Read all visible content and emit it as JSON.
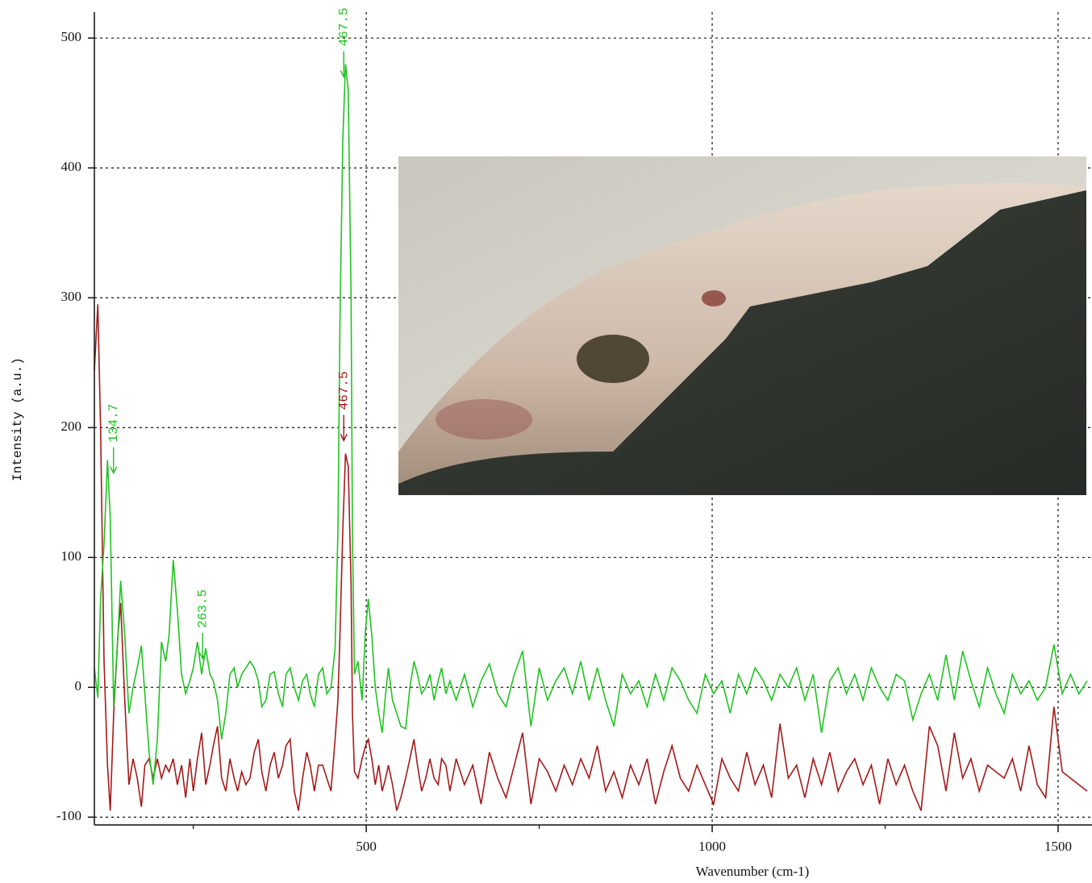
{
  "chart_data": {
    "type": "line",
    "xlabel": "Wavenumber (cm-1)",
    "ylabel": "Intensity (a.u.)",
    "x": [
      107,
      112,
      116,
      121,
      126,
      130,
      135,
      141,
      145,
      151,
      157,
      163,
      169,
      175,
      180,
      186,
      192,
      198,
      204,
      210,
      215,
      221,
      227,
      233,
      239,
      245,
      250,
      256,
      262,
      268,
      274,
      279,
      285,
      291,
      297,
      303,
      309,
      314,
      320,
      326,
      332,
      338,
      344,
      349,
      355,
      361,
      367,
      373,
      379,
      384,
      390,
      396,
      402,
      408,
      414,
      419,
      425,
      431,
      437,
      443,
      449,
      455,
      459,
      462,
      466,
      470,
      474,
      478,
      480,
      483,
      488,
      494,
      499,
      503,
      508,
      513,
      518,
      523,
      528,
      532,
      538,
      544,
      550,
      557,
      563,
      569,
      574,
      580,
      586,
      592,
      598,
      604,
      609,
      615,
      621,
      630,
      642,
      654,
      666,
      678,
      690,
      702,
      714,
      726,
      738,
      750,
      762,
      774,
      786,
      798,
      810,
      822,
      834,
      846,
      858,
      870,
      882,
      894,
      906,
      918,
      930,
      942,
      954,
      966,
      978,
      990,
      1002,
      1014,
      1026,
      1038,
      1050,
      1062,
      1074,
      1086,
      1098,
      1110,
      1122,
      1134,
      1146,
      1158,
      1170,
      1182,
      1194,
      1206,
      1218,
      1230,
      1242,
      1254,
      1266,
      1278,
      1290,
      1302,
      1314,
      1326,
      1338,
      1350,
      1362,
      1374,
      1386,
      1398,
      1410,
      1422,
      1434,
      1446,
      1458,
      1470,
      1482,
      1494,
      1506,
      1518,
      1530,
      1542
    ],
    "series": [
      {
        "color": "#22c322",
        "values": [
          15,
          -8,
          68,
          110,
          175,
          130,
          -15,
          40,
          82,
          40,
          -20,
          0,
          15,
          32,
          -5,
          -50,
          -75,
          -40,
          35,
          20,
          40,
          98,
          60,
          10,
          -5,
          5,
          15,
          35,
          10,
          30,
          10,
          5,
          -10,
          -40,
          -20,
          10,
          15,
          0,
          10,
          15,
          20,
          15,
          5,
          -15,
          -10,
          10,
          12,
          -5,
          -15,
          10,
          15,
          0,
          -10,
          5,
          10,
          -5,
          -15,
          10,
          15,
          -5,
          0,
          30,
          120,
          280,
          420,
          480,
          460,
          300,
          120,
          10,
          20,
          -10,
          45,
          68,
          40,
          0,
          -20,
          -35,
          -5,
          15,
          -10,
          -20,
          -30,
          -32,
          0,
          20,
          10,
          -5,
          0,
          10,
          -10,
          5,
          15,
          -5,
          5,
          -10,
          10,
          -15,
          5,
          18,
          -5,
          -15,
          10,
          28,
          -30,
          15,
          -10,
          5,
          15,
          -5,
          20,
          -10,
          15,
          -10,
          -30,
          10,
          -5,
          5,
          -15,
          10,
          -10,
          15,
          5,
          -10,
          -20,
          10,
          -5,
          5,
          -20,
          10,
          -5,
          15,
          5,
          -10,
          10,
          0,
          15,
          -10,
          10,
          -35,
          5,
          15,
          -5,
          10,
          -10,
          15,
          0,
          -10,
          10,
          5,
          -25,
          -5,
          10,
          -10,
          25,
          -10,
          28,
          5,
          -15,
          15,
          -5,
          -20,
          10,
          -5,
          5,
          -10,
          0,
          33,
          -5,
          10,
          -5,
          5
        ]
      },
      {
        "color": "#a51a1a",
        "values": [
          244,
          295,
          200,
          20,
          -60,
          -95,
          -20,
          40,
          65,
          -10,
          -75,
          -55,
          -70,
          -92,
          -60,
          -55,
          -70,
          -55,
          -70,
          -60,
          -65,
          -55,
          -75,
          -60,
          -85,
          -55,
          -80,
          -55,
          -35,
          -75,
          -60,
          -45,
          -30,
          -70,
          -80,
          -55,
          -70,
          -80,
          -65,
          -75,
          -70,
          -50,
          -40,
          -65,
          -80,
          -60,
          -50,
          -70,
          -60,
          -45,
          -40,
          -80,
          -95,
          -70,
          -50,
          -60,
          -80,
          -60,
          -60,
          -70,
          -80,
          -40,
          -10,
          40,
          120,
          180,
          170,
          80,
          -20,
          -65,
          -70,
          -55,
          -45,
          -40,
          -55,
          -75,
          -60,
          -80,
          -70,
          -60,
          -75,
          -95,
          -85,
          -70,
          -55,
          -40,
          -60,
          -80,
          -70,
          -55,
          -70,
          -75,
          -55,
          -60,
          -80,
          -55,
          -75,
          -60,
          -90,
          -50,
          -70,
          -85,
          -60,
          -35,
          -90,
          -55,
          -65,
          -80,
          -60,
          -75,
          -55,
          -70,
          -45,
          -80,
          -65,
          -85,
          -60,
          -75,
          -55,
          -90,
          -65,
          -45,
          -70,
          -80,
          -60,
          -75,
          -90,
          -55,
          -70,
          -80,
          -50,
          -75,
          -60,
          -85,
          -28,
          -70,
          -60,
          -85,
          -55,
          -75,
          -50,
          -80,
          -65,
          -55,
          -75,
          -60,
          -90,
          -55,
          -75,
          -60,
          -80,
          -95,
          -30,
          -45,
          -80,
          -35,
          -70,
          -55,
          -80,
          -60,
          -65,
          -70,
          -55,
          -80,
          -45,
          -75,
          -85,
          -15,
          -65,
          -70,
          -75,
          -80
        ]
      }
    ],
    "annotations": [
      {
        "x": 134.7,
        "y": 165,
        "series": 0
      },
      {
        "x": 263.5,
        "y": 22,
        "series": 0
      },
      {
        "x": 467.5,
        "y": 470,
        "series": 0
      },
      {
        "x": 467.5,
        "y": 190,
        "series": 1
      }
    ],
    "xlim": [
      107,
      1549
    ],
    "ylim": [
      -106,
      520
    ],
    "xticks": [
      500,
      1000,
      1500
    ],
    "xminorticks": [
      250,
      750,
      1250
    ],
    "yticks": [
      -100,
      0,
      100,
      200,
      300,
      400,
      500
    ],
    "grid": true
  }
}
